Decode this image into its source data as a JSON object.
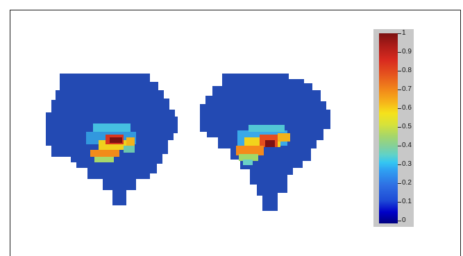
{
  "figure": {
    "colorbar": {
      "ticks": [
        "0",
        "0.1",
        "0.2",
        "0.3",
        "0.4",
        "0.5",
        "0.6",
        "0.7",
        "0.8",
        "0.9",
        "1"
      ],
      "colors": {
        "low": "#000080",
        "mid": "#f5e21b",
        "high": "#7b1111"
      }
    },
    "brain_maps": [
      {
        "label": ""
      },
      {
        "label": ""
      }
    ]
  }
}
